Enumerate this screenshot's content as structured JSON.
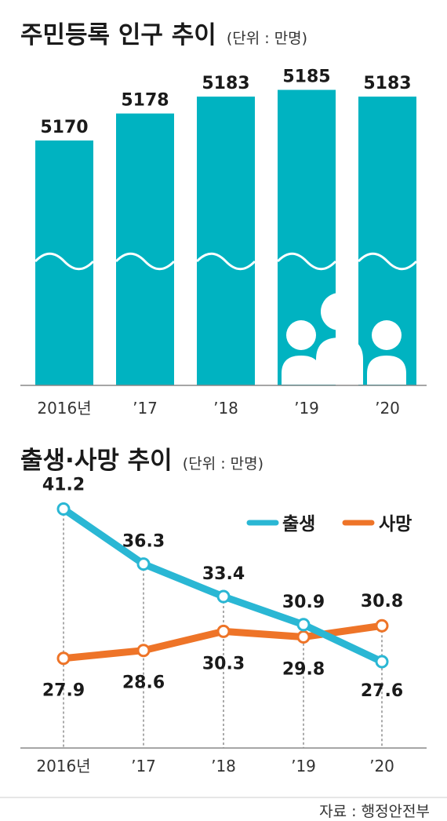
{
  "chart_data": [
    {
      "type": "bar",
      "title": "주민등록 인구 추이",
      "unit": "(단위 : 만명)",
      "categories": [
        "2016년",
        "’17",
        "’18",
        "’19",
        "’20"
      ],
      "values": [
        5170,
        5178,
        5183,
        5185,
        5183
      ],
      "axis_break": true,
      "bar_color": "#00b3c1",
      "grid": false
    },
    {
      "type": "line",
      "title": "출생·사망 추이",
      "unit": "(단위 : 만명)",
      "categories": [
        "2016년",
        "’17",
        "’18",
        "’19",
        "’20"
      ],
      "series": [
        {
          "name": "출생",
          "values": [
            41.2,
            36.3,
            33.4,
            30.9,
            27.6
          ],
          "color": "#2ab7d4"
        },
        {
          "name": "사망",
          "values": [
            27.9,
            28.6,
            30.3,
            29.8,
            30.8
          ],
          "color": "#ee7428"
        }
      ],
      "legend": "top-right",
      "grid": false
    }
  ],
  "source": "자료 : 행정안전부"
}
